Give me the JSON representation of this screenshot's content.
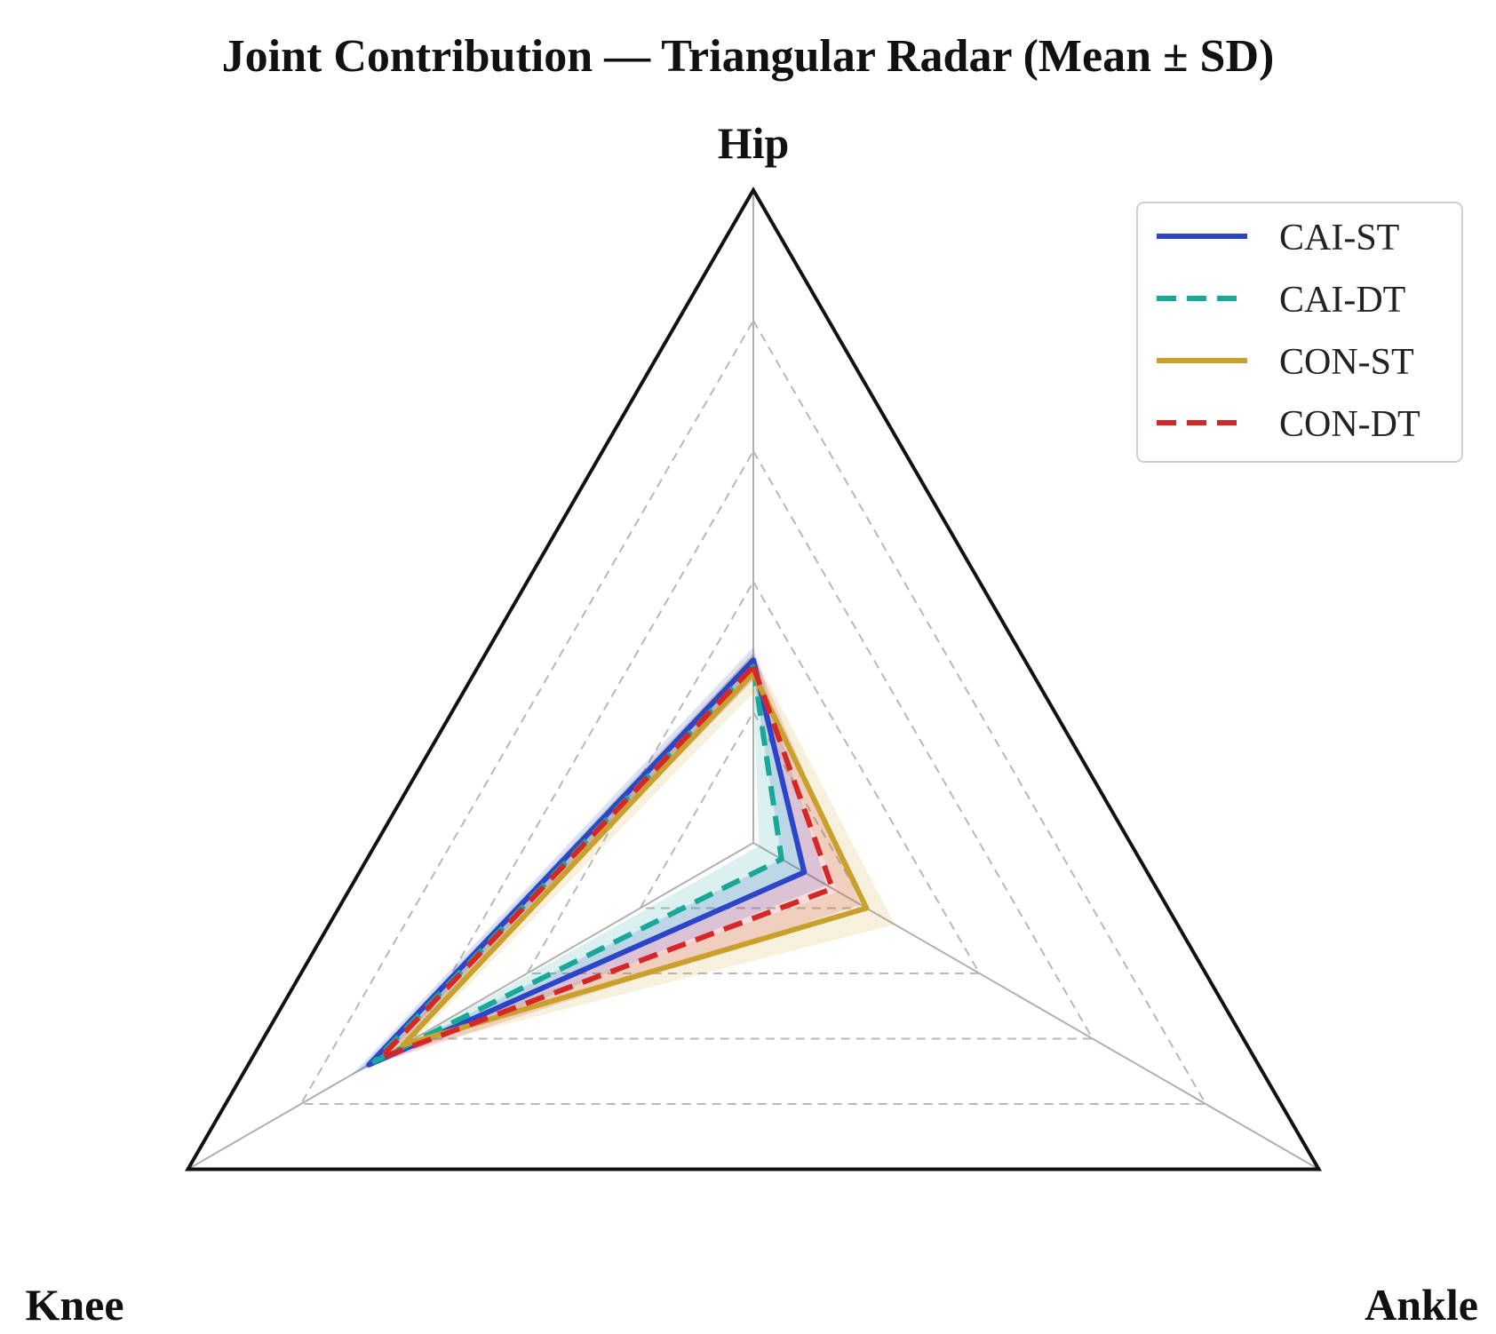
{
  "chart_data": {
    "type": "radar",
    "title": "Joint Contribution — Triangular Radar (Mean ± SD)",
    "axes": [
      "Hip",
      "Ankle",
      "Knee"
    ],
    "rlim": [
      0,
      1
    ],
    "grid_levels": [
      0.2,
      0.4,
      0.6,
      0.8,
      1.0
    ],
    "grid": true,
    "legend_position": "top-right",
    "series": [
      {
        "name": "CAI-ST",
        "color": "#2c45c8",
        "line_style": "solid",
        "mean": {
          "Hip": 0.28,
          "Ankle": 0.09,
          "Knee": 0.68
        },
        "sd": {
          "Hip": 0.02,
          "Ankle": 0.04,
          "Knee": 0.03
        }
      },
      {
        "name": "CAI-DT",
        "color": "#17a89a",
        "line_style": "dashed",
        "mean": {
          "Hip": 0.27,
          "Ankle": 0.05,
          "Knee": 0.67
        },
        "sd": {
          "Hip": 0.02,
          "Ankle": 0.04,
          "Knee": 0.03
        }
      },
      {
        "name": "CON-ST",
        "color": "#c9a02c",
        "line_style": "solid",
        "mean": {
          "Hip": 0.26,
          "Ankle": 0.2,
          "Knee": 0.62
        },
        "sd": {
          "Hip": 0.03,
          "Ankle": 0.05,
          "Knee": 0.03
        }
      },
      {
        "name": "CON-DT",
        "color": "#d62728",
        "line_style": "dashed",
        "mean": {
          "Hip": 0.27,
          "Ankle": 0.14,
          "Knee": 0.66
        },
        "sd": {
          "Hip": 0.02,
          "Ankle": 0.05,
          "Knee": 0.03
        }
      }
    ]
  }
}
